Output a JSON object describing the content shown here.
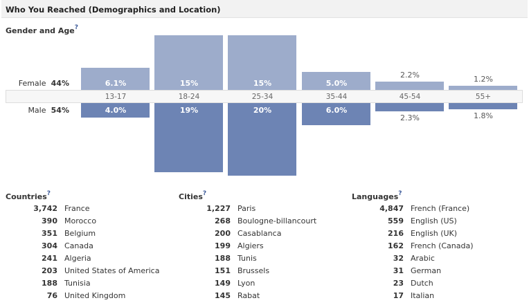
{
  "header": {
    "title": "Who You Reached (Demographics and Location)"
  },
  "gender_age": {
    "title": "Gender and Age",
    "help": "?",
    "female": {
      "label": "Female",
      "pct": "44%"
    },
    "male": {
      "label": "Male",
      "pct": "54%"
    },
    "colors": {
      "female": "#9daccb",
      "male": "#6d84b4"
    },
    "chart_data": {
      "type": "bar",
      "categories": [
        "13-17",
        "18-24",
        "25-34",
        "35-44",
        "45-54",
        "55+"
      ],
      "series": [
        {
          "name": "Female",
          "values": [
            6.1,
            15,
            15,
            5.0,
            2.2,
            1.2
          ],
          "labels": [
            "6.1%",
            "15%",
            "15%",
            "5.0%",
            "2.2%",
            "1.2%"
          ]
        },
        {
          "name": "Male",
          "values": [
            4.0,
            19,
            20,
            6.0,
            2.3,
            1.8
          ],
          "labels": [
            "4.0%",
            "19%",
            "20%",
            "6.0%",
            "2.3%",
            "1.8%"
          ]
        }
      ]
    }
  },
  "countries": {
    "title": "Countries",
    "help": "?",
    "items": [
      {
        "n": "3,742",
        "name": "France"
      },
      {
        "n": "390",
        "name": "Morocco"
      },
      {
        "n": "351",
        "name": "Belgium"
      },
      {
        "n": "304",
        "name": "Canada"
      },
      {
        "n": "241",
        "name": "Algeria"
      },
      {
        "n": "203",
        "name": "United States of America"
      },
      {
        "n": "188",
        "name": "Tunisia"
      },
      {
        "n": "76",
        "name": "United Kingdom"
      }
    ]
  },
  "cities": {
    "title": "Cities",
    "help": "?",
    "items": [
      {
        "n": "1,227",
        "name": "Paris"
      },
      {
        "n": "268",
        "name": "Boulogne-billancourt"
      },
      {
        "n": "200",
        "name": "Casablanca"
      },
      {
        "n": "199",
        "name": "Algiers"
      },
      {
        "n": "188",
        "name": "Tunis"
      },
      {
        "n": "151",
        "name": "Brussels"
      },
      {
        "n": "149",
        "name": "Lyon"
      },
      {
        "n": "145",
        "name": "Rabat"
      }
    ]
  },
  "languages": {
    "title": "Languages",
    "help": "?",
    "items": [
      {
        "n": "4,847",
        "name": "French (France)"
      },
      {
        "n": "559",
        "name": "English (US)"
      },
      {
        "n": "216",
        "name": "English (UK)"
      },
      {
        "n": "162",
        "name": "French (Canada)"
      },
      {
        "n": "32",
        "name": "Arabic"
      },
      {
        "n": "31",
        "name": "German"
      },
      {
        "n": "23",
        "name": "Dutch"
      },
      {
        "n": "17",
        "name": "Italian"
      }
    ]
  }
}
